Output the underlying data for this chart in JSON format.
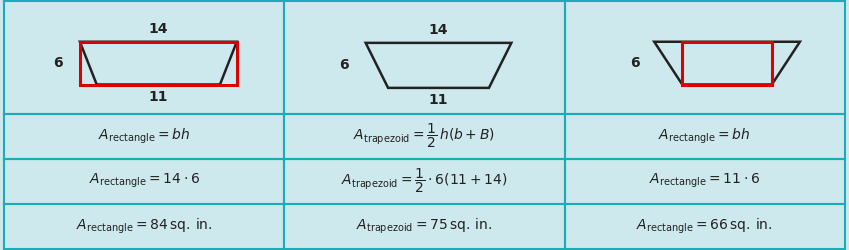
{
  "bg_color": "#cee9ee",
  "border_color": "#1aacb8",
  "dark_color": "#222222",
  "red_color": "#dd0000",
  "formulas": [
    [
      "$A_{\\mathrm{rectangle}} = bh$",
      "$A_{\\mathrm{trapezoid}} = \\dfrac{1}{2}\\,h(b + B)$",
      "$A_{\\mathrm{rectangle}} = bh$"
    ],
    [
      "$A_{\\mathrm{rectangle}} = 14 \\cdot 6$",
      "$A_{\\mathrm{trapezoid}} = \\dfrac{1}{2} \\cdot 6(11 + 14)$",
      "$A_{\\mathrm{rectangle}} = 11 \\cdot 6$"
    ],
    [
      "$A_{\\mathrm{rectangle}} = 84\\,\\mathrm{sq.\\,in.}$",
      "$A_{\\mathrm{trapezoid}} = 75\\,\\mathrm{sq.\\,in.}$",
      "$A_{\\mathrm{rectangle}} = 66\\,\\mathrm{sq.\\,in.}$"
    ]
  ]
}
